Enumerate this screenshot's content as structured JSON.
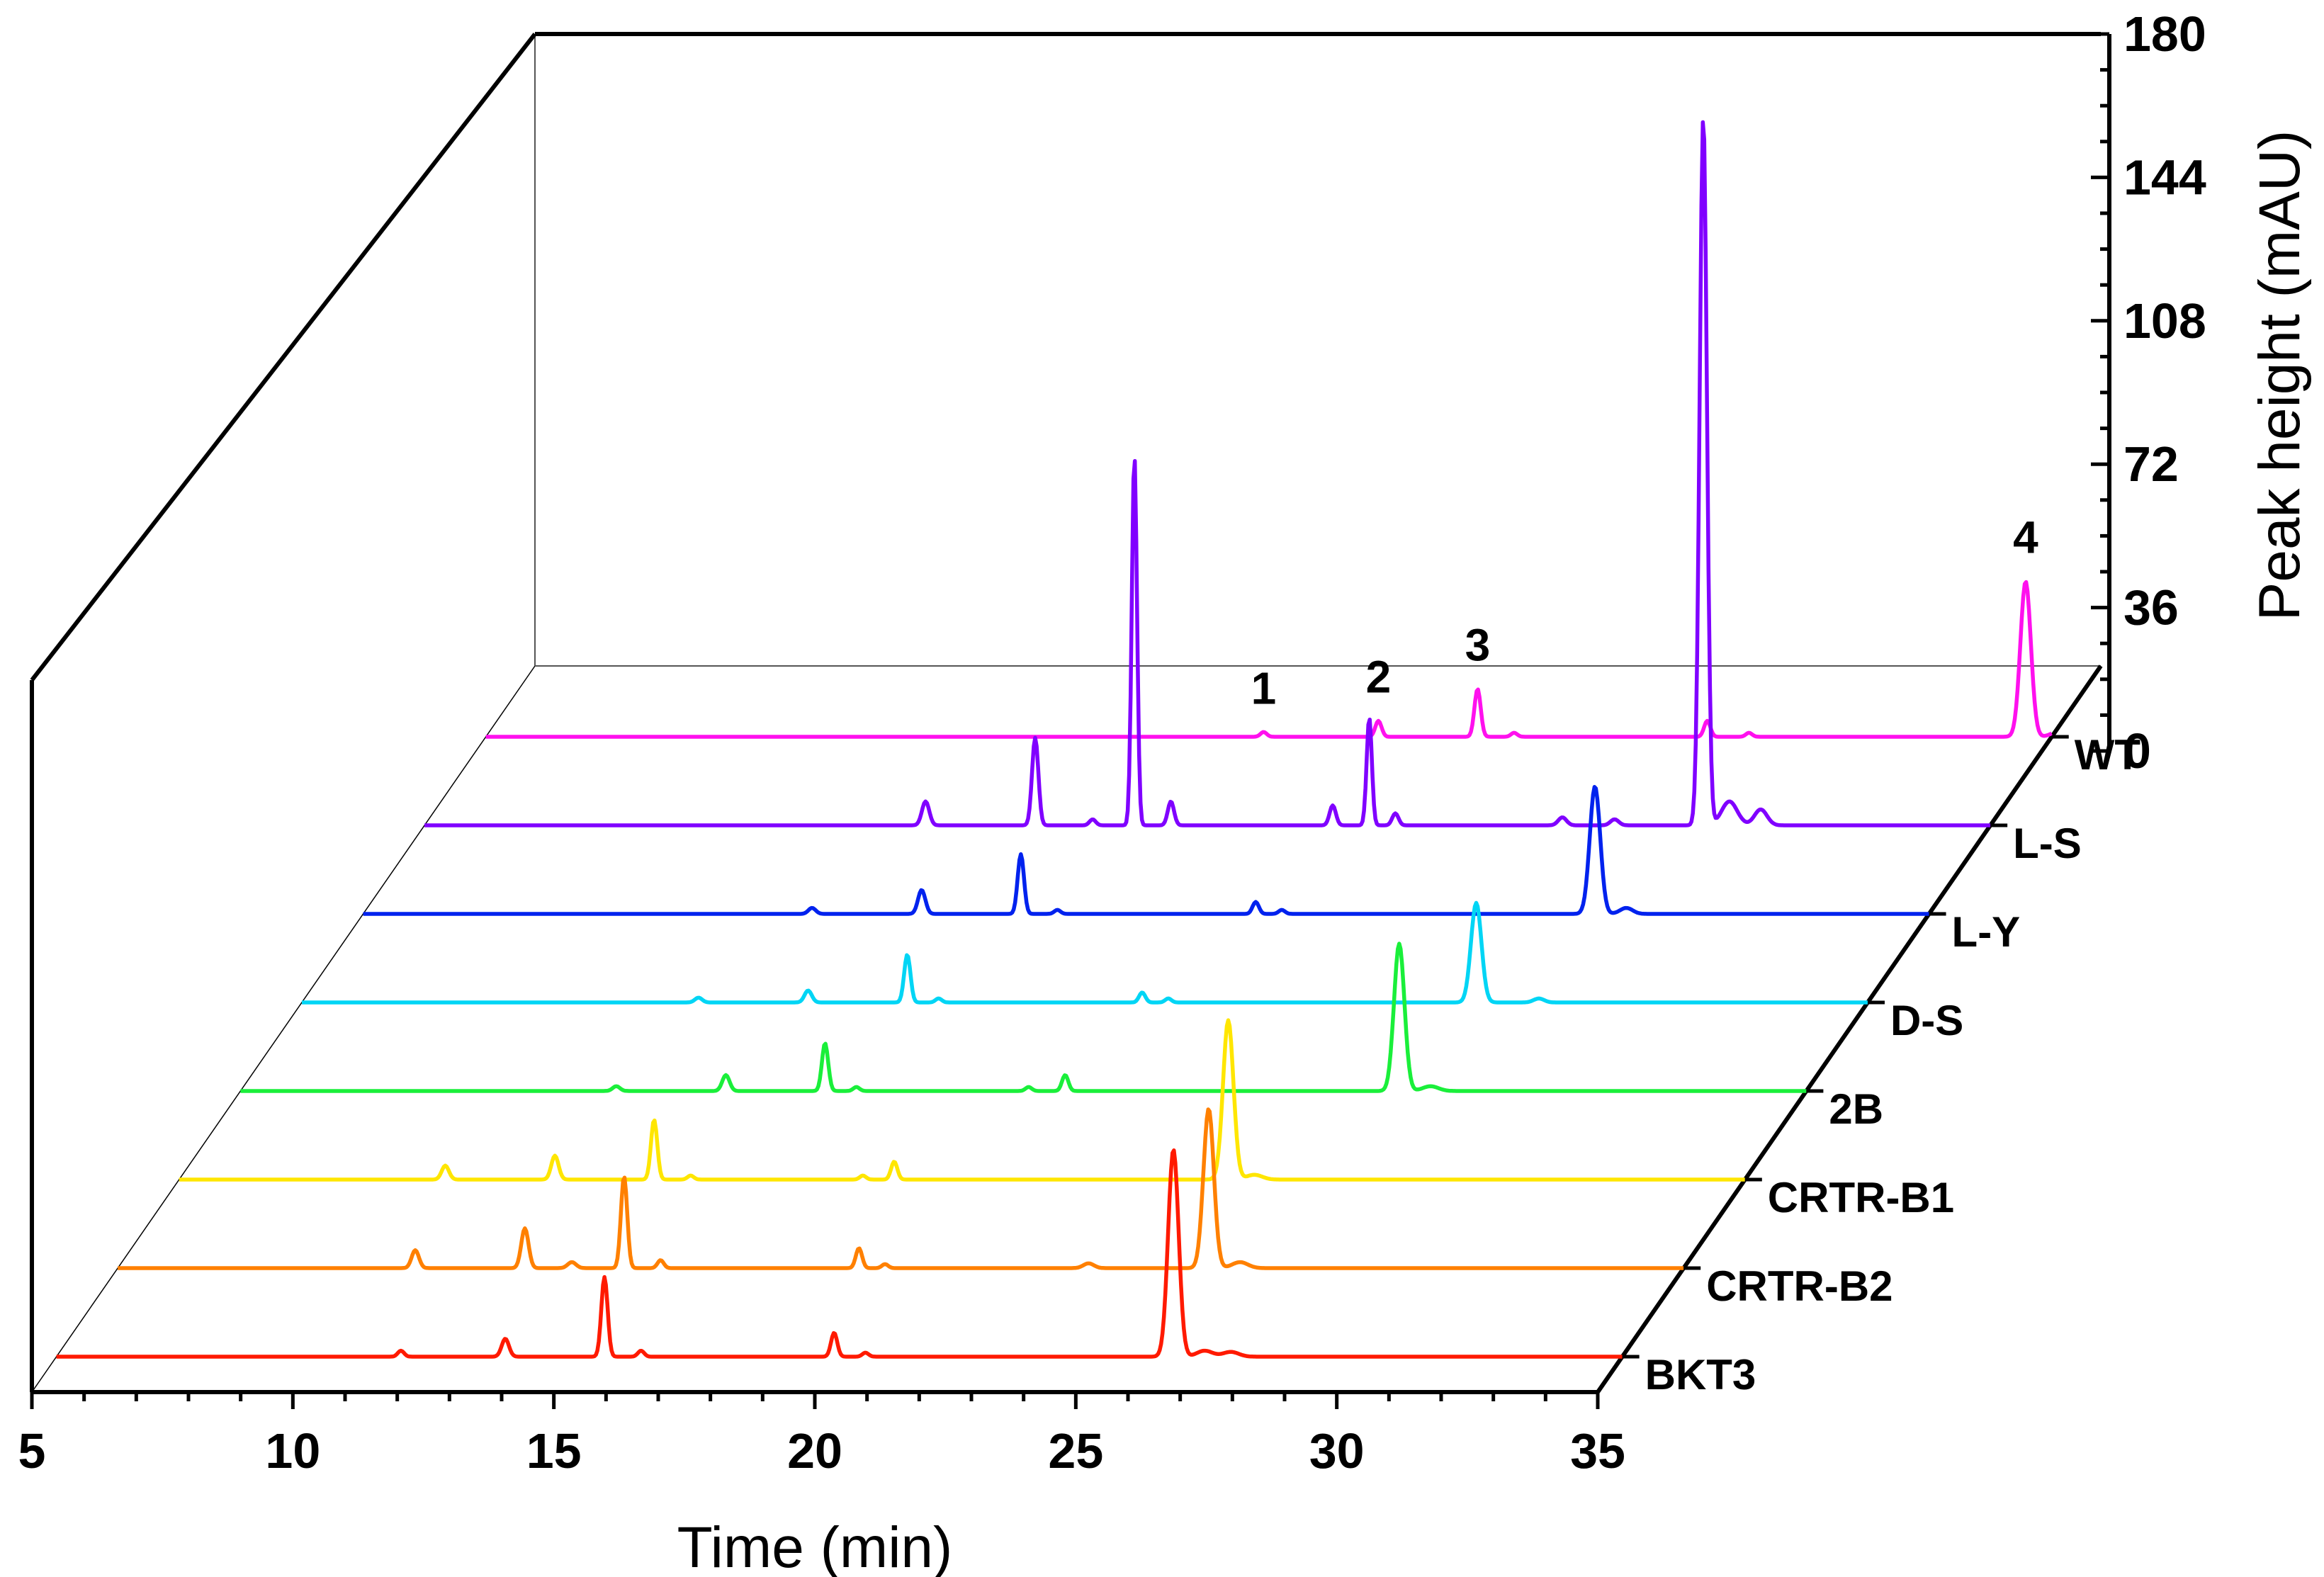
{
  "chart_data": {
    "type": "line",
    "style": "3d-waterfall",
    "xlabel": "Time (min)",
    "ylabel": "Peak height (mAU)",
    "xlim": [
      5,
      35
    ],
    "ylim": [
      0,
      180
    ],
    "x_ticks": [
      5,
      10,
      15,
      20,
      25,
      30,
      35
    ],
    "x_tick_labels": [
      "5",
      "10",
      "15",
      "20",
      "25",
      "30",
      "35"
    ],
    "y_ticks": [
      0,
      36,
      72,
      108,
      144,
      180
    ],
    "y_tick_labels": [
      "0",
      "36",
      "72",
      "108",
      "144",
      "180"
    ],
    "peak_labels": [
      {
        "text": "1",
        "time": 19.9
      },
      {
        "text": "2",
        "time": 22.1
      },
      {
        "text": "3",
        "time": 24.0
      },
      {
        "text": "4",
        "time": 34.5
      }
    ],
    "series": [
      {
        "name": "BKT3",
        "color": "#ff1a00",
        "peaks": [
          [
            11.6,
            1.5,
            0.06
          ],
          [
            13.6,
            4.5,
            0.07
          ],
          [
            15.5,
            20,
            0.06
          ],
          [
            16.2,
            1.5,
            0.06
          ],
          [
            19.9,
            6,
            0.06
          ],
          [
            20.5,
            1,
            0.06
          ],
          [
            26.4,
            52,
            0.1
          ],
          [
            27,
            1.5,
            0.15
          ],
          [
            27.5,
            1.2,
            0.15
          ]
        ]
      },
      {
        "name": "CRTR-B2",
        "color": "#ff8000",
        "peaks": [
          [
            10.7,
            4.5,
            0.07
          ],
          [
            12.8,
            10,
            0.07
          ],
          [
            13.7,
            1.5,
            0.08
          ],
          [
            14.7,
            23,
            0.06
          ],
          [
            15.4,
            2,
            0.06
          ],
          [
            19.2,
            5,
            0.06
          ],
          [
            19.7,
            1,
            0.06
          ],
          [
            23.6,
            1.2,
            0.1
          ],
          [
            25.9,
            40,
            0.1
          ],
          [
            26.5,
            1.5,
            0.15
          ]
        ]
      },
      {
        "name": "CRTR-B1",
        "color": "#ffe600",
        "peaks": [
          [
            10.1,
            3.5,
            0.07
          ],
          [
            12.2,
            6,
            0.07
          ],
          [
            14.1,
            15,
            0.06
          ],
          [
            14.8,
            1,
            0.06
          ],
          [
            18.1,
            1,
            0.06
          ],
          [
            18.7,
            4.5,
            0.06
          ],
          [
            25.1,
            40,
            0.1
          ],
          [
            25.6,
            1.2,
            0.15
          ]
        ]
      },
      {
        "name": "2B",
        "color": "#1aef3a",
        "peaks": [
          [
            12.2,
            1.2,
            0.07
          ],
          [
            14.3,
            4,
            0.07
          ],
          [
            16.2,
            12,
            0.06
          ],
          [
            16.8,
            1,
            0.06
          ],
          [
            20.1,
            1,
            0.06
          ],
          [
            20.8,
            4,
            0.06
          ],
          [
            27.2,
            37,
            0.1
          ],
          [
            27.8,
            1.2,
            0.15
          ]
        ]
      },
      {
        "name": "D-S",
        "color": "#00d5f5",
        "peaks": [
          [
            12.6,
            1.2,
            0.07
          ],
          [
            14.7,
            3,
            0.07
          ],
          [
            16.6,
            12,
            0.06
          ],
          [
            17.2,
            1,
            0.06
          ],
          [
            21.1,
            2.5,
            0.06
          ],
          [
            21.6,
            1,
            0.06
          ],
          [
            27.5,
            25,
            0.1
          ],
          [
            28.7,
            1,
            0.1
          ]
        ]
      },
      {
        "name": "L-Y",
        "color": "#0022ee",
        "peaks": [
          [
            13.6,
            1.5,
            0.07
          ],
          [
            15.7,
            6,
            0.07
          ],
          [
            17.6,
            15,
            0.06
          ],
          [
            18.3,
            1,
            0.06
          ],
          [
            22.1,
            3,
            0.06
          ],
          [
            22.6,
            1,
            0.06
          ],
          [
            28.6,
            32,
            0.1
          ],
          [
            29.2,
            1.5,
            0.12
          ]
        ]
      },
      {
        "name": "L-S",
        "color": "#8000ff",
        "peaks": [
          [
            14.6,
            6,
            0.07
          ],
          [
            16.7,
            22,
            0.06
          ],
          [
            17.8,
            1.5,
            0.06
          ],
          [
            18.6,
            93,
            0.05
          ],
          [
            19.3,
            6,
            0.06
          ],
          [
            22.4,
            5,
            0.06
          ],
          [
            23.1,
            27,
            0.05
          ],
          [
            23.6,
            3,
            0.06
          ],
          [
            26.8,
            2,
            0.08
          ],
          [
            27.8,
            1.5,
            0.08
          ],
          [
            29.5,
            178,
            0.07
          ],
          [
            30,
            6,
            0.15
          ],
          [
            30.6,
            4,
            0.12
          ]
        ]
      },
      {
        "name": "WT",
        "color": "#ff10ee",
        "peaks": [
          [
            19.9,
            1.2,
            0.06
          ],
          [
            22.1,
            4,
            0.06
          ],
          [
            24.0,
            12,
            0.06
          ],
          [
            24.7,
            1,
            0.06
          ],
          [
            28.4,
            4,
            0.06
          ],
          [
            29.2,
            1,
            0.06
          ],
          [
            34.5,
            39,
            0.1
          ],
          [
            35.1,
            1.2,
            0.12
          ]
        ]
      }
    ]
  }
}
